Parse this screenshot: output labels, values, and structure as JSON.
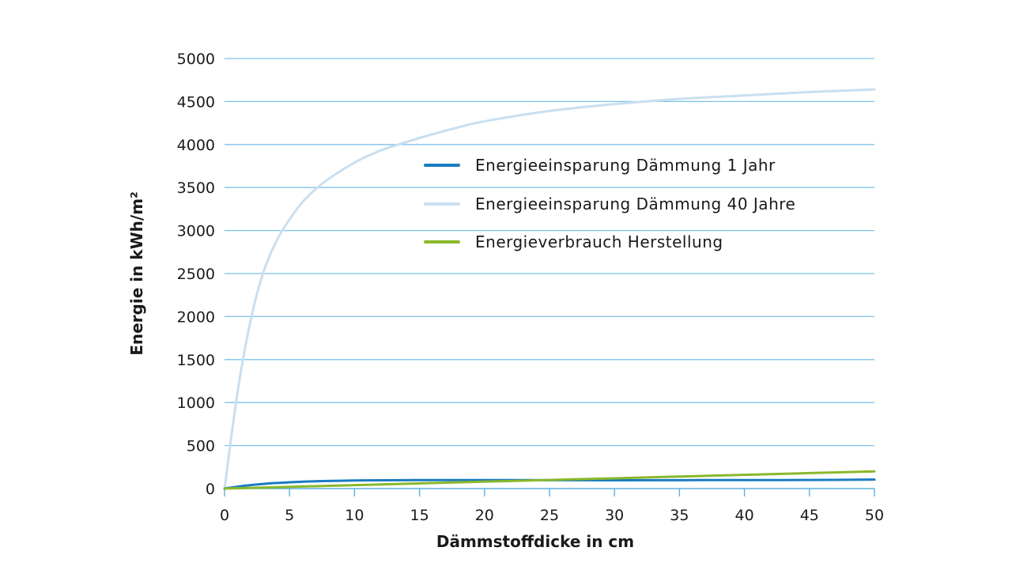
{
  "chart_data": {
    "type": "line",
    "xlabel": "Dämmstoffdicke in cm",
    "ylabel": "Energie in kWh/m²",
    "xlim": [
      0,
      50
    ],
    "ylim": [
      0,
      5000
    ],
    "x_ticks": [
      0,
      5,
      10,
      15,
      20,
      25,
      30,
      35,
      40,
      45,
      50
    ],
    "y_ticks": [
      0,
      500,
      1000,
      1500,
      2000,
      2500,
      3000,
      3500,
      4000,
      4500,
      5000
    ],
    "grid": "horizontal",
    "legend_position": "center-right",
    "x": [
      0,
      1,
      2,
      3,
      4,
      5,
      6,
      7,
      8,
      10,
      12,
      14,
      16,
      18,
      20,
      25,
      30,
      35,
      40,
      45,
      50
    ],
    "series": [
      {
        "name": "Energieeinsparung Dämmung 1 Jahr",
        "color": "#1a7cc1",
        "values": [
          0,
          22,
          40,
          54,
          65,
          73,
          80,
          85,
          89,
          94,
          97,
          98,
          99,
          99,
          99,
          98,
          97,
          98,
          99,
          100,
          104
        ]
      },
      {
        "name": "Energieeinsparung Dämmung 40 Jahre",
        "color": "#c8dff0",
        "values": [
          0,
          1120,
          1950,
          2520,
          2880,
          3130,
          3330,
          3480,
          3600,
          3790,
          3930,
          4030,
          4120,
          4200,
          4270,
          4390,
          4470,
          4530,
          4570,
          4610,
          4640
        ]
      },
      {
        "name": "Energieverbrauch Herstellung",
        "color": "#8ab82c",
        "values": [
          0,
          4,
          8,
          12,
          16,
          20,
          24,
          28,
          32,
          40,
          48,
          56,
          64,
          72,
          80,
          100,
          120,
          140,
          160,
          180,
          200
        ]
      }
    ]
  }
}
